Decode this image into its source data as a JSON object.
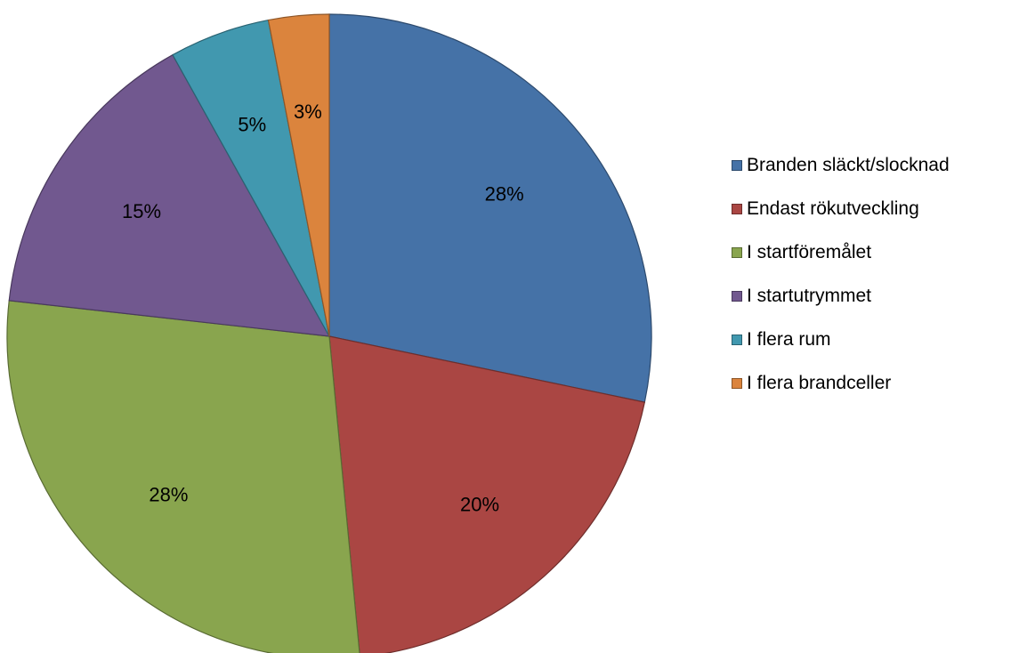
{
  "chart_data": {
    "type": "pie",
    "title": "",
    "series": [
      {
        "labels": [
          "Branden släckt/slocknad",
          "Endast rökutveckling",
          "I startföremålet",
          "I startutrymmet",
          "I flera rum",
          "I flera brandceller"
        ],
        "values": [
          28,
          20,
          28,
          15,
          5,
          3
        ],
        "data_labels": [
          "28%",
          "20%",
          "28%",
          "15%",
          "5%",
          "3%"
        ],
        "colors": [
          "#4572A7",
          "#AA4643",
          "#89A54E",
          "#71588F",
          "#4198AF",
          "#DB843D"
        ]
      }
    ],
    "legend": {
      "position": "right",
      "items": [
        "Branden släckt/slocknad",
        "Endast rökutveckling",
        "I startföremålet",
        "I startutrymmet",
        "I flera rum",
        "I flera brandceller"
      ]
    },
    "start_angle": "12 o'clock",
    "direction": "clockwise"
  }
}
